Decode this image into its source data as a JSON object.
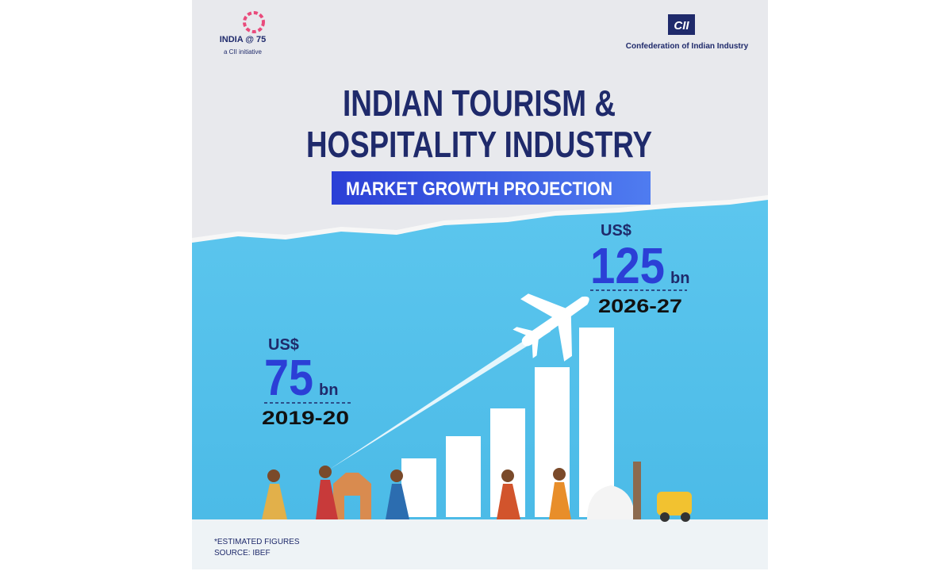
{
  "logos": {
    "left": {
      "label": "INDIA @ 75",
      "sub": "a CII initiative"
    },
    "right": {
      "mark": "CII",
      "name": "Confederation of Indian Industry"
    }
  },
  "title": {
    "line1": "INDIAN TOURISM &",
    "line2": "HOSPITALITY INDUSTRY"
  },
  "subtitle": "MARKET GROWTH PROJECTION",
  "figures": [
    {
      "currency": "US$",
      "value": 75,
      "unit": "bn",
      "period": "2019-20"
    },
    {
      "currency": "US$",
      "value": 125,
      "unit": "bn",
      "period": "2026-27"
    }
  ],
  "footnote": {
    "line1": "*ESTIMATED FIGURES",
    "line2": "SOURCE: IBEF"
  }
}
